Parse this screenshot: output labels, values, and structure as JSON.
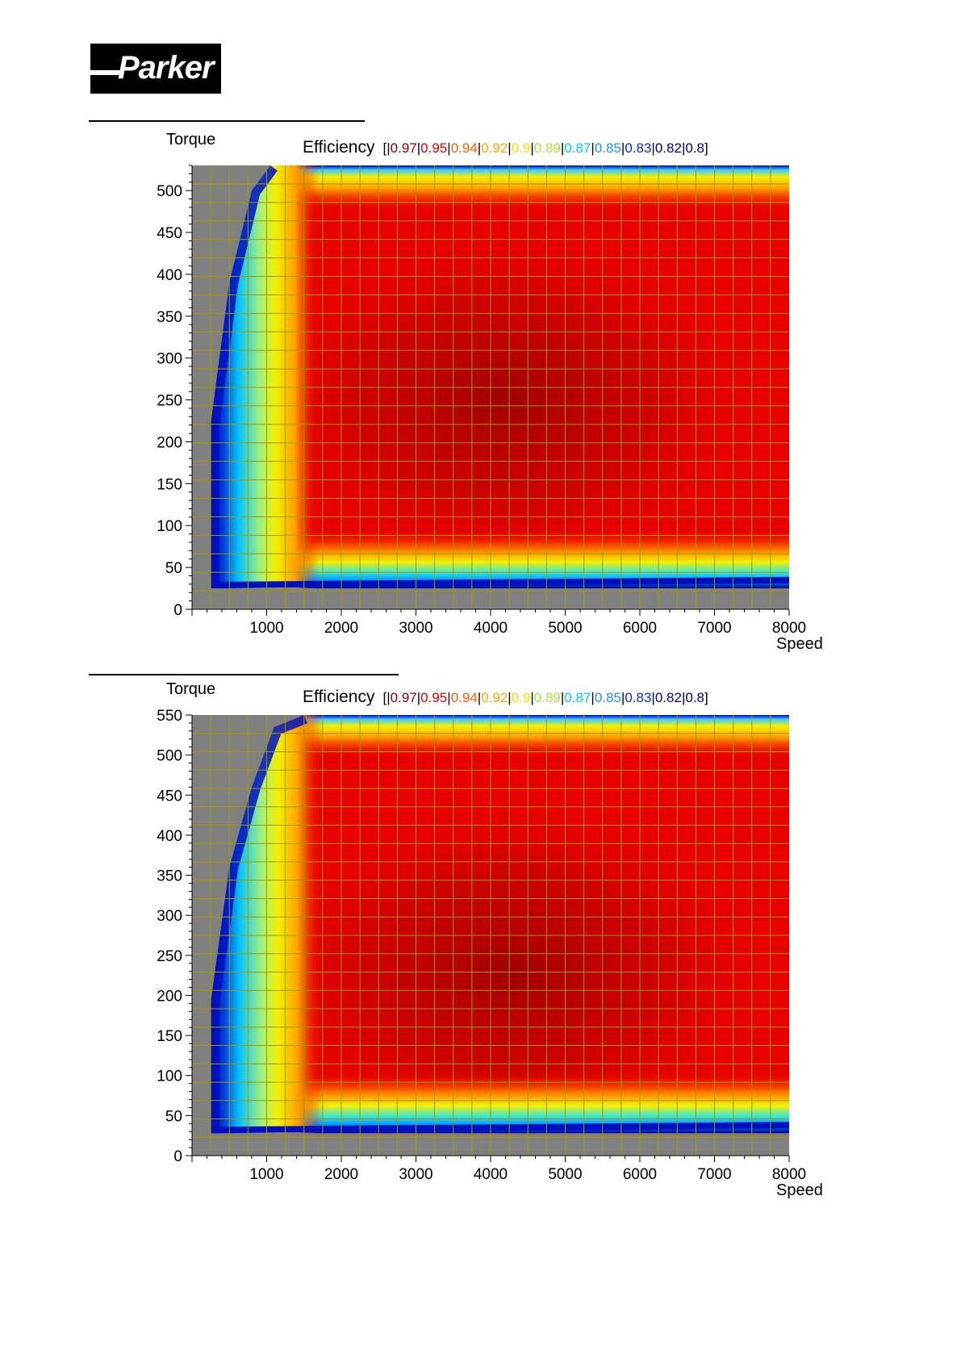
{
  "logo": {
    "text": "Parker"
  },
  "chart_data": [
    {
      "type": "heatmap",
      "ylabel": "Torque",
      "xlabel": "Speed",
      "legend_title": "Efficiency",
      "legend": {
        "open": "[",
        "close": "]",
        "entries": [
          {
            "label": "0.97",
            "color": "#8b0000"
          },
          {
            "label": "0.95",
            "color": "#e00000"
          },
          {
            "label": "0.94",
            "color": "#ff5a00"
          },
          {
            "label": "0.92",
            "color": "#ffa500"
          },
          {
            "label": "0.9",
            "color": "#f0e000"
          },
          {
            "label": "0.89",
            "color": "#a8e040"
          },
          {
            "label": "0.87",
            "color": "#00c8f0"
          },
          {
            "label": "0.85",
            "color": "#1e90ff"
          },
          {
            "label": "0.83",
            "color": "#0030e0"
          },
          {
            "label": "0.82",
            "color": "#0000a0"
          },
          {
            "label": "0.8",
            "color": "#000080"
          }
        ]
      },
      "xlim": [
        0,
        8000
      ],
      "ylim": [
        0,
        530
      ],
      "xticks": [
        1000,
        2000,
        3000,
        4000,
        5000,
        6000,
        7000,
        8000
      ],
      "yticks": [
        0,
        50,
        100,
        150,
        200,
        250,
        300,
        350,
        400,
        450,
        500
      ],
      "colors": {
        "background": "#808080",
        "grid": "#a09a00"
      },
      "envelope": [
        [
          250,
          25
        ],
        [
          250,
          220
        ],
        [
          500,
          390
        ],
        [
          800,
          500
        ],
        [
          1050,
          530
        ],
        [
          8000,
          530
        ],
        [
          8000,
          25
        ]
      ],
      "bands": {
        "low_torque_edge": 45,
        "max_torque_edge": 515,
        "low_speed_edge": 800
      },
      "peak": {
        "speed": 4200,
        "torque": 250,
        "efficiency": 0.97
      }
    },
    {
      "type": "heatmap",
      "ylabel": "Torque",
      "xlabel": "Speed",
      "legend_title": "Efficiency",
      "legend": {
        "open": "[",
        "close": "]",
        "entries": [
          {
            "label": "0.97",
            "color": "#8b0000"
          },
          {
            "label": "0.95",
            "color": "#e00000"
          },
          {
            "label": "0.94",
            "color": "#ff5a00"
          },
          {
            "label": "0.92",
            "color": "#ffa500"
          },
          {
            "label": "0.9",
            "color": "#f0e000"
          },
          {
            "label": "0.89",
            "color": "#a8e040"
          },
          {
            "label": "0.87",
            "color": "#00c8f0"
          },
          {
            "label": "0.85",
            "color": "#1e90ff"
          },
          {
            "label": "0.83",
            "color": "#0030e0"
          },
          {
            "label": "0.82",
            "color": "#0000a0"
          },
          {
            "label": "0.8",
            "color": "#000080"
          }
        ]
      },
      "xlim": [
        0,
        8000
      ],
      "ylim": [
        0,
        550
      ],
      "xticks": [
        1000,
        2000,
        3000,
        4000,
        5000,
        6000,
        7000,
        8000
      ],
      "yticks": [
        0,
        50,
        100,
        150,
        200,
        250,
        300,
        350,
        400,
        450,
        500,
        550
      ],
      "colors": {
        "background": "#808080",
        "grid": "#a09a00"
      },
      "envelope": [
        [
          250,
          28
        ],
        [
          250,
          190
        ],
        [
          500,
          360
        ],
        [
          800,
          460
        ],
        [
          1100,
          535
        ],
        [
          1500,
          550
        ],
        [
          8000,
          550
        ],
        [
          8000,
          28
        ]
      ],
      "bands": {
        "low_torque_edge": 55,
        "max_torque_edge": 535,
        "low_speed_edge": 850
      },
      "peak": {
        "speed": 4300,
        "torque": 230,
        "efficiency": 0.97
      }
    }
  ]
}
